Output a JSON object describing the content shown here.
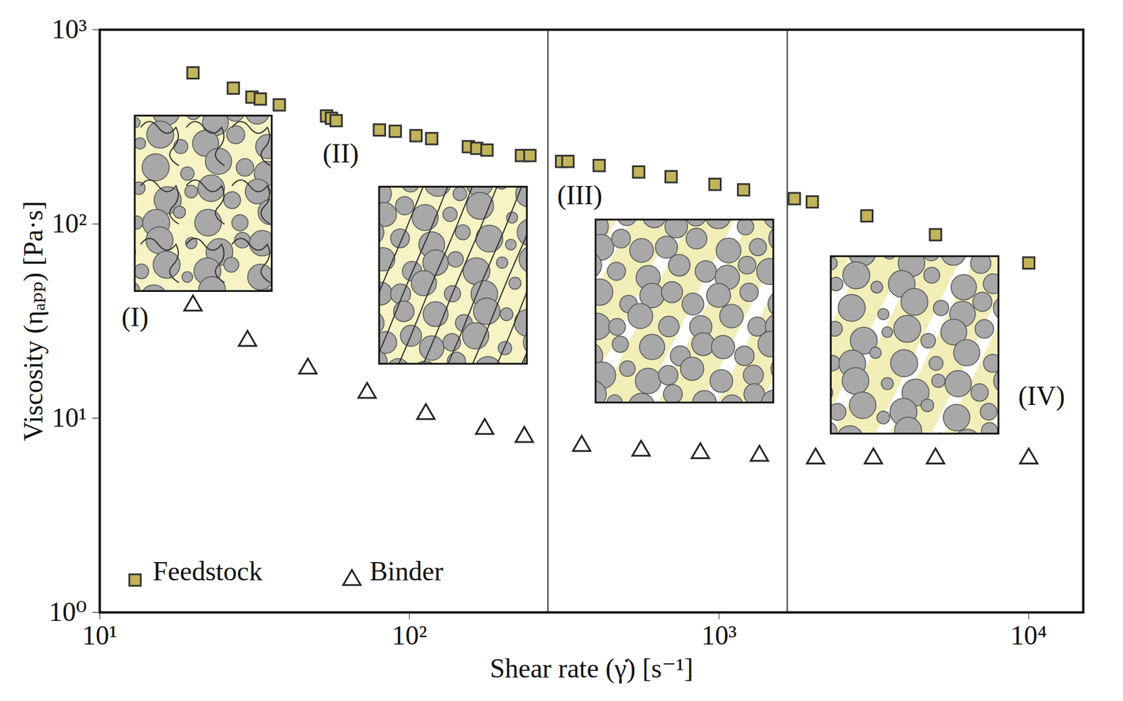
{
  "chart_data": {
    "type": "scatter",
    "x_label": "Shear rate (γ̇) [s⁻¹]",
    "y_label": "Viscosity (ηₐₚₚ) [Pa·s]",
    "log": true,
    "grid": false,
    "legend": "bottom-left",
    "xlim": [
      10,
      15000
    ],
    "ylim": [
      1,
      1000
    ],
    "xticks": [
      {
        "value": 10,
        "label": "10¹"
      },
      {
        "value": 100,
        "label": "10²"
      },
      {
        "value": 1000,
        "label": "10³"
      },
      {
        "value": 10000,
        "label": "10⁴"
      }
    ],
    "yticks": [
      {
        "value": 1,
        "label": "10⁰"
      },
      {
        "value": 10,
        "label": "10¹"
      },
      {
        "value": 100,
        "label": "10²"
      },
      {
        "value": 1000,
        "label": "10³"
      }
    ],
    "series": [
      {
        "name": "Feedstock",
        "color": "#c2b45a",
        "marker": "square",
        "x": [
          20,
          27,
          31,
          33,
          38,
          54,
          56,
          58,
          80,
          90,
          105,
          118,
          155,
          165,
          178,
          230,
          245,
          310,
          325,
          410,
          550,
          700,
          970,
          1200,
          1750,
          2000,
          3000,
          5000,
          10000
        ],
        "values": [
          600,
          500,
          450,
          440,
          410,
          360,
          350,
          340,
          305,
          300,
          285,
          275,
          250,
          245,
          240,
          225,
          225,
          210,
          210,
          200,
          185,
          175,
          160,
          150,
          135,
          130,
          110,
          88,
          63
        ]
      },
      {
        "name": "Binder",
        "color": "#222222",
        "marker": "triangle",
        "x": [
          20,
          30,
          47,
          73,
          113,
          175,
          235,
          360,
          560,
          870,
          1350,
          2050,
          3150,
          5000,
          10000
        ],
        "values": [
          38,
          25,
          18,
          13.5,
          10.5,
          8.8,
          8,
          7.2,
          6.8,
          6.6,
          6.4,
          6.2,
          6.2,
          6.2,
          6.2
        ]
      }
    ],
    "annotations": [
      {
        "text": "(I)",
        "x": 13,
        "y": 33
      },
      {
        "text": "(II)",
        "x": 60,
        "y": 230
      },
      {
        "text": "(III)",
        "x": 300,
        "y": 140
      },
      {
        "text": "(IV)",
        "x": 11000,
        "y": 13
      }
    ],
    "region_boundaries": [
      280,
      1660
    ]
  }
}
